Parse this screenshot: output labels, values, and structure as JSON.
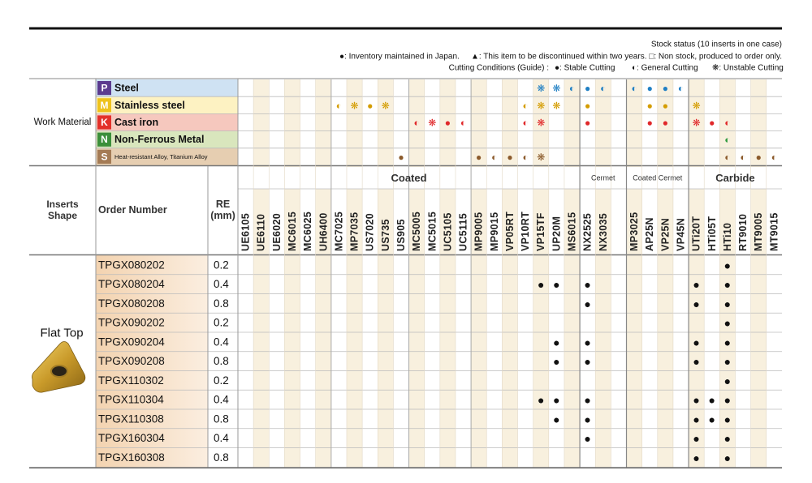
{
  "legend": {
    "stock_title": "Stock status (10 inserts in one case)",
    "inventory": "●: Inventory maintained in Japan.",
    "discontinued": "▲: This item to be discontinued within two years.",
    "non_stock": "□: Non stock, produced to order only.",
    "conditions_title": "Cutting Conditions (Guide) :",
    "stable": "●: Stable Cutting",
    "general": "◐: General Cutting",
    "unstable": "❋: Unstable Cutting"
  },
  "work_material": {
    "label": "Work Material",
    "rows": [
      {
        "code": "P",
        "name": "Steel",
        "badge": "#5b3b8f",
        "bg": "#cfe2f3",
        "color": "#1f7fc4",
        "cells": [
          null,
          null,
          null,
          null,
          null,
          null,
          null,
          null,
          null,
          null,
          null,
          null,
          null,
          null,
          null,
          null,
          null,
          null,
          null,
          "❋",
          "❋",
          "◐",
          "●",
          "◐",
          "◐",
          "●",
          "●",
          "◐",
          null,
          null,
          null,
          null,
          null,
          null
        ]
      },
      {
        "code": "M",
        "name": "Stainless steel",
        "badge": "#eec21c",
        "bg": "#fdf2c2",
        "color": "#d49c00",
        "cells": [
          null,
          null,
          null,
          null,
          null,
          null,
          "◐",
          "❋",
          "●",
          "❋",
          null,
          null,
          null,
          null,
          null,
          null,
          null,
          null,
          "◐",
          "❋",
          "❋",
          null,
          "●",
          null,
          null,
          "●",
          "●",
          null,
          "❋",
          null,
          null,
          null,
          null,
          null
        ]
      },
      {
        "code": "K",
        "name": "Cast iron",
        "badge": "#e3302a",
        "bg": "#f6c8be",
        "color": "#e0282a",
        "cells": [
          null,
          null,
          null,
          null,
          null,
          null,
          null,
          null,
          null,
          null,
          null,
          "◐",
          "❋",
          "●",
          "◐",
          null,
          null,
          null,
          "◐",
          "❋",
          null,
          null,
          "●",
          null,
          null,
          "●",
          "●",
          null,
          "❋",
          "●",
          "◐",
          null,
          null,
          null
        ]
      },
      {
        "code": "N",
        "name": "Non-Ferrous Metal",
        "badge": "#3b8f3b",
        "bg": "#d9e6bd",
        "color": "#2e9a3e",
        "cells": [
          null,
          null,
          null,
          null,
          null,
          null,
          null,
          null,
          null,
          null,
          null,
          null,
          null,
          null,
          null,
          null,
          null,
          null,
          null,
          null,
          null,
          null,
          null,
          null,
          null,
          null,
          null,
          null,
          null,
          null,
          "◐",
          null,
          null,
          null
        ]
      },
      {
        "code": "S",
        "name": "Heat-resistant Alloy, Titanium Alloy",
        "badge": "#a47b55",
        "bg": "#e6ceb1",
        "color": "#8b5a2b",
        "cells": [
          null,
          null,
          null,
          null,
          null,
          null,
          null,
          null,
          null,
          null,
          "●",
          null,
          null,
          null,
          null,
          "●",
          "◐",
          "●",
          "◐",
          "❋",
          null,
          null,
          null,
          null,
          null,
          null,
          null,
          null,
          null,
          null,
          "◐",
          "◐",
          "●",
          "◐"
        ]
      }
    ]
  },
  "header": {
    "inserts_shape": [
      "Inserts",
      "Shape"
    ],
    "order_number": "Order Number",
    "re": [
      "RE",
      "(mm)"
    ]
  },
  "groups": [
    {
      "name": "Coated",
      "grades": [
        "UE6105",
        "UE6110",
        "UE6020",
        "MC6015",
        "MC6025",
        "UH6400",
        "MC7025",
        "MP7035",
        "US7020",
        "US735",
        "US905",
        "MC5005",
        "MC5015",
        "UC5105",
        "UC5115",
        "MP9005",
        "MP9015",
        "VP05RT",
        "VP10RT",
        "VP15TF",
        "UP20M",
        "MS6015"
      ]
    },
    {
      "name": "Cermet",
      "grades": [
        "NX2525",
        "NX3035"
      ]
    },
    {
      "name": "Coated Cermet",
      "grades": [
        "MP3025",
        "AP25N",
        "VP25N",
        "VP45N"
      ]
    },
    {
      "name": "Carbide",
      "grades": [
        "UTi20T",
        "HTi05T",
        "HTi10",
        "RT9010",
        "MT9005",
        "MT9015"
      ]
    }
  ],
  "shape": "Flat Top",
  "items": [
    {
      "order": "TPGX080202",
      "re": 0.2,
      "stock": [
        null,
        null,
        null,
        null,
        null,
        null,
        null,
        null,
        null,
        null,
        null,
        null,
        null,
        null,
        null,
        null,
        null,
        null,
        null,
        null,
        null,
        null,
        null,
        null,
        null,
        null,
        null,
        null,
        null,
        null,
        "●",
        null,
        null,
        null
      ]
    },
    {
      "order": "TPGX080204",
      "re": 0.4,
      "stock": [
        null,
        null,
        null,
        null,
        null,
        null,
        null,
        null,
        null,
        null,
        null,
        null,
        null,
        null,
        null,
        null,
        null,
        null,
        null,
        "●",
        "●",
        null,
        "●",
        null,
        null,
        null,
        null,
        null,
        "●",
        null,
        "●",
        null,
        null,
        null
      ]
    },
    {
      "order": "TPGX080208",
      "re": 0.8,
      "stock": [
        null,
        null,
        null,
        null,
        null,
        null,
        null,
        null,
        null,
        null,
        null,
        null,
        null,
        null,
        null,
        null,
        null,
        null,
        null,
        null,
        null,
        null,
        "●",
        null,
        null,
        null,
        null,
        null,
        "●",
        null,
        "●",
        null,
        null,
        null
      ]
    },
    {
      "order": "TPGX090202",
      "re": 0.2,
      "stock": [
        null,
        null,
        null,
        null,
        null,
        null,
        null,
        null,
        null,
        null,
        null,
        null,
        null,
        null,
        null,
        null,
        null,
        null,
        null,
        null,
        null,
        null,
        null,
        null,
        null,
        null,
        null,
        null,
        null,
        null,
        "●",
        null,
        null,
        null
      ]
    },
    {
      "order": "TPGX090204",
      "re": 0.4,
      "stock": [
        null,
        null,
        null,
        null,
        null,
        null,
        null,
        null,
        null,
        null,
        null,
        null,
        null,
        null,
        null,
        null,
        null,
        null,
        null,
        null,
        "●",
        null,
        "●",
        null,
        null,
        null,
        null,
        null,
        "●",
        null,
        "●",
        null,
        null,
        null
      ]
    },
    {
      "order": "TPGX090208",
      "re": 0.8,
      "stock": [
        null,
        null,
        null,
        null,
        null,
        null,
        null,
        null,
        null,
        null,
        null,
        null,
        null,
        null,
        null,
        null,
        null,
        null,
        null,
        null,
        "●",
        null,
        "●",
        null,
        null,
        null,
        null,
        null,
        "●",
        null,
        "●",
        null,
        null,
        null
      ]
    },
    {
      "order": "TPGX110302",
      "re": 0.2,
      "stock": [
        null,
        null,
        null,
        null,
        null,
        null,
        null,
        null,
        null,
        null,
        null,
        null,
        null,
        null,
        null,
        null,
        null,
        null,
        null,
        null,
        null,
        null,
        null,
        null,
        null,
        null,
        null,
        null,
        null,
        null,
        "●",
        null,
        null,
        null
      ]
    },
    {
      "order": "TPGX110304",
      "re": 0.4,
      "stock": [
        null,
        null,
        null,
        null,
        null,
        null,
        null,
        null,
        null,
        null,
        null,
        null,
        null,
        null,
        null,
        null,
        null,
        null,
        null,
        "●",
        "●",
        null,
        "●",
        null,
        null,
        null,
        null,
        null,
        "●",
        "●",
        "●",
        null,
        null,
        null
      ]
    },
    {
      "order": "TPGX110308",
      "re": 0.8,
      "stock": [
        null,
        null,
        null,
        null,
        null,
        null,
        null,
        null,
        null,
        null,
        null,
        null,
        null,
        null,
        null,
        null,
        null,
        null,
        null,
        null,
        "●",
        null,
        "●",
        null,
        null,
        null,
        null,
        null,
        "●",
        "●",
        "●",
        null,
        null,
        null
      ]
    },
    {
      "order": "TPGX160304",
      "re": 0.4,
      "stock": [
        null,
        null,
        null,
        null,
        null,
        null,
        null,
        null,
        null,
        null,
        null,
        null,
        null,
        null,
        null,
        null,
        null,
        null,
        null,
        null,
        null,
        null,
        "●",
        null,
        null,
        null,
        null,
        null,
        "●",
        null,
        "●",
        null,
        null,
        null
      ]
    },
    {
      "order": "TPGX160308",
      "re": 0.8,
      "stock": [
        null,
        null,
        null,
        null,
        null,
        null,
        null,
        null,
        null,
        null,
        null,
        null,
        null,
        null,
        null,
        null,
        null,
        null,
        null,
        null,
        null,
        null,
        null,
        null,
        null,
        null,
        null,
        null,
        "●",
        null,
        "●",
        null,
        null,
        null
      ]
    }
  ]
}
